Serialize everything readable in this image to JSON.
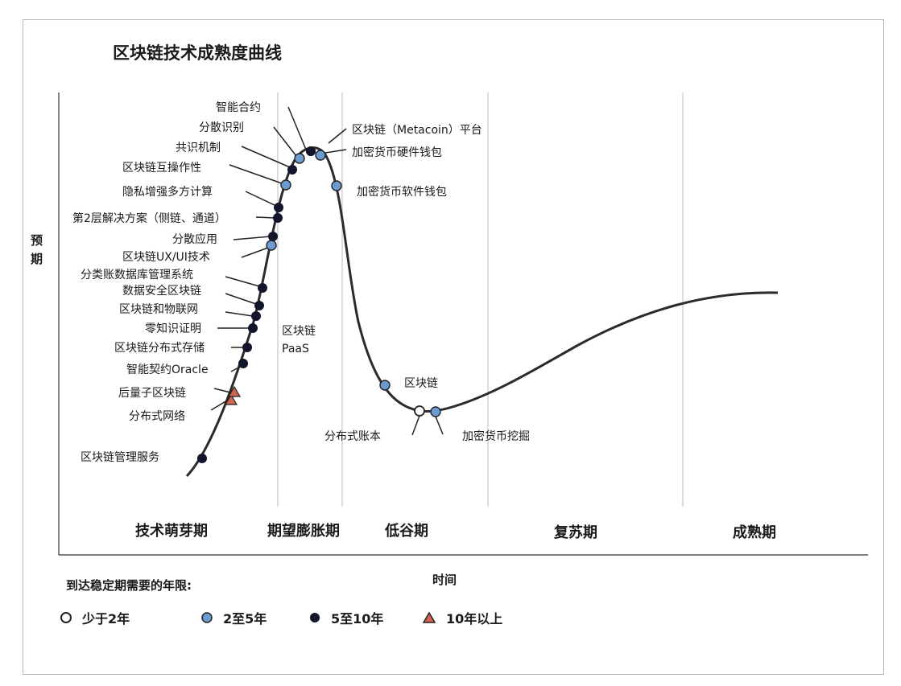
{
  "chart_data": {
    "type": "line",
    "title": "区块链技术成熟度曲线",
    "xlabel": "时间",
    "ylabel": "预期",
    "phases": [
      "技术萌芽期",
      "期望膨胀期",
      "低谷期",
      "复苏期",
      "成熟期"
    ],
    "legend_title": "到达稳定期需要的年限:",
    "legend": [
      {
        "label": "少于2年",
        "marker": "open-circle"
      },
      {
        "label": "2至5年",
        "marker": "blue-circle"
      },
      {
        "label": "5至10年",
        "marker": "dark-circle"
      },
      {
        "label": "10年以上",
        "marker": "red-triangle"
      }
    ],
    "technologies": [
      {
        "label": "区块链管理服务",
        "category": "5至10年",
        "phase": "技术萌芽期"
      },
      {
        "label": "分布式网络",
        "category": "10年以上",
        "phase": "技术萌芽期"
      },
      {
        "label": "后量子区块链",
        "category": "10年以上",
        "phase": "技术萌芽期"
      },
      {
        "label": "智能契约Oracle",
        "category": "5至10年",
        "phase": "技术萌芽期"
      },
      {
        "label": "区块链分布式存储",
        "category": "5至10年",
        "phase": "技术萌芽期"
      },
      {
        "label": "零知识证明",
        "category": "5至10年",
        "phase": "技术萌芽期"
      },
      {
        "label": "区块链和物联网",
        "category": "5至10年",
        "phase": "技术萌芽期"
      },
      {
        "label": "数据安全区块链",
        "category": "5至10年",
        "phase": "技术萌芽期"
      },
      {
        "label": "分类账数据库管理系统",
        "category": "5至10年",
        "phase": "技术萌芽期"
      },
      {
        "label": "区块链UX/UI技术",
        "category": "2至5年",
        "phase": "技术萌芽期"
      },
      {
        "label": "分散应用",
        "category": "5至10年",
        "phase": "期望膨胀期"
      },
      {
        "label": "第2层解决方案（侧链、通道）",
        "category": "5至10年",
        "phase": "期望膨胀期"
      },
      {
        "label": "隐私增强多方计算",
        "category": "5至10年",
        "phase": "期望膨胀期"
      },
      {
        "label": "区块链互操作性",
        "category": "2至5年",
        "phase": "期望膨胀期"
      },
      {
        "label": "共识机制",
        "category": "5至10年",
        "phase": "期望膨胀期"
      },
      {
        "label": "分散识别",
        "category": "2至5年",
        "phase": "期望膨胀期"
      },
      {
        "label": "智能合约",
        "category": "5至10年",
        "phase": "期望膨胀期"
      },
      {
        "label": "区块链PaaS",
        "category": "5至10年",
        "phase": "期望膨胀期"
      },
      {
        "label": "区块链（Metacoin）平台",
        "category": "2至5年",
        "phase": "期望膨胀期"
      },
      {
        "label": "加密货币硬件钱包",
        "category": "2至5年",
        "phase": "期望膨胀期"
      },
      {
        "label": "加密货币软件钱包",
        "category": "2至5年",
        "phase": "低谷期"
      },
      {
        "label": "区块链",
        "category": "2至5年",
        "phase": "低谷期"
      },
      {
        "label": "分布式账本",
        "category": "少于2年",
        "phase": "低谷期"
      },
      {
        "label": "加密货币挖掘",
        "category": "2至5年",
        "phase": "低谷期"
      }
    ]
  },
  "labels": {
    "ylabel_line1": "预",
    "ylabel_line2": "期",
    "paas_line1": "区块链",
    "paas_line2": "PaaS"
  },
  "colors": {
    "blue": "#6b9bd1",
    "dark": "#12152b",
    "triangle": "#d06450",
    "curve": "#2b2b2b"
  }
}
